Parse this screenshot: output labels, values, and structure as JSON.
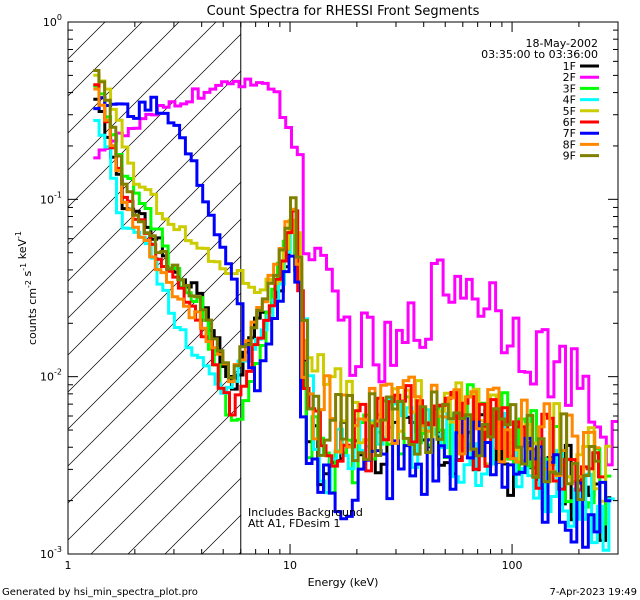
{
  "chart_data": {
    "type": "line",
    "title": "Count Spectra for RHESSI Front Segments",
    "xlabel": "Energy (keV)",
    "ylabel": "counts cm-2 s-1 keV-1",
    "x_scale": "log",
    "y_scale": "log",
    "xlim": [
      1,
      300
    ],
    "ylim": [
      0.001,
      1
    ],
    "x_tick_labels": [
      "1",
      "10",
      "100"
    ],
    "y_tick_labels": [
      {
        "base": "10",
        "exp": "0"
      },
      {
        "base": "10",
        "exp": "-1"
      },
      {
        "base": "10",
        "exp": "-2"
      },
      {
        "base": "10",
        "exp": "-3"
      }
    ],
    "grid": false,
    "legend_position": "top-right",
    "header_lines": [
      "18-May-2002",
      "03:35:00 to 03:36:00"
    ],
    "annotations": [
      "Includes Background",
      "Att A1, FDesim 1"
    ],
    "shaded_region_keV": [
      1,
      6
    ],
    "footer_left": "Generated by hsi_min_spectra_plot.pro",
    "footer_right": "7-Apr-2023 19:49",
    "series": [
      {
        "name": "1F",
        "color": "#000000",
        "anchors": [
          [
            1.3,
            0.37
          ],
          [
            1.5,
            0.25
          ],
          [
            1.8,
            0.095
          ],
          [
            2.2,
            0.08
          ],
          [
            3.0,
            0.04
          ],
          [
            4.0,
            0.03
          ],
          [
            5.5,
            0.008
          ],
          [
            7.0,
            0.02
          ],
          [
            9.0,
            0.03
          ],
          [
            10.5,
            0.08
          ],
          [
            12,
            0.004
          ],
          [
            14,
            0.003
          ],
          [
            20,
            0.005
          ],
          [
            30,
            0.004
          ],
          [
            50,
            0.004
          ],
          [
            80,
            0.004
          ],
          [
            120,
            0.003
          ],
          [
            180,
            0.0025
          ],
          [
            280,
            0.0015
          ]
        ]
      },
      {
        "name": "2F",
        "color": "#ff00ff",
        "anchors": [
          [
            1.3,
            0.18
          ],
          [
            1.5,
            0.2
          ],
          [
            2.0,
            0.25
          ],
          [
            2.5,
            0.3
          ],
          [
            3.0,
            0.35
          ],
          [
            4.0,
            0.4
          ],
          [
            5.0,
            0.42
          ],
          [
            6.5,
            0.48
          ],
          [
            7.5,
            0.47
          ],
          [
            8.5,
            0.4
          ],
          [
            10,
            0.25
          ],
          [
            11,
            0.15
          ],
          [
            12,
            0.07
          ],
          [
            13,
            0.04
          ],
          [
            15,
            0.025
          ],
          [
            18,
            0.018
          ],
          [
            22,
            0.014
          ],
          [
            30,
            0.012
          ],
          [
            40,
            0.025
          ],
          [
            55,
            0.038
          ],
          [
            70,
            0.033
          ],
          [
            100,
            0.02
          ],
          [
            150,
            0.012
          ],
          [
            200,
            0.008
          ],
          [
            260,
            0.005
          ],
          [
            300,
            0.004
          ]
        ]
      },
      {
        "name": "3F",
        "color": "#00ff00",
        "anchors": [
          [
            1.3,
            0.5
          ],
          [
            1.5,
            0.3
          ],
          [
            1.8,
            0.13
          ],
          [
            2.2,
            0.1
          ],
          [
            3.0,
            0.04
          ],
          [
            4.0,
            0.025
          ],
          [
            5.5,
            0.005
          ],
          [
            7.0,
            0.01
          ],
          [
            9.0,
            0.04
          ],
          [
            10.5,
            0.09
          ],
          [
            12,
            0.005
          ],
          [
            16,
            0.003
          ],
          [
            25,
            0.006
          ],
          [
            40,
            0.005
          ],
          [
            60,
            0.006
          ],
          [
            90,
            0.005
          ],
          [
            130,
            0.004
          ],
          [
            200,
            0.003
          ],
          [
            280,
            0.002
          ]
        ]
      },
      {
        "name": "4F",
        "color": "#00ffff",
        "anchors": [
          [
            1.3,
            0.3
          ],
          [
            1.5,
            0.2
          ],
          [
            1.7,
            0.08
          ],
          [
            2.3,
            0.06
          ],
          [
            3.0,
            0.02
          ],
          [
            4.0,
            0.012
          ],
          [
            5.0,
            0.008
          ],
          [
            7.0,
            0.015
          ],
          [
            9.0,
            0.03
          ],
          [
            10.5,
            0.07
          ],
          [
            13,
            0.003
          ],
          [
            20,
            0.004
          ],
          [
            30,
            0.005
          ],
          [
            50,
            0.004
          ],
          [
            80,
            0.004
          ],
          [
            130,
            0.003
          ],
          [
            220,
            0.002
          ],
          [
            290,
            0.0015
          ]
        ]
      },
      {
        "name": "5F",
        "color": "#cccc00",
        "anchors": [
          [
            1.3,
            0.5
          ],
          [
            1.6,
            0.35
          ],
          [
            2.0,
            0.13
          ],
          [
            2.6,
            0.09
          ],
          [
            3.5,
            0.06
          ],
          [
            4.5,
            0.045
          ],
          [
            5.5,
            0.04
          ],
          [
            7.0,
            0.032
          ],
          [
            9.0,
            0.035
          ],
          [
            10.5,
            0.1
          ],
          [
            12,
            0.01
          ],
          [
            15,
            0.007
          ],
          [
            20,
            0.006
          ],
          [
            30,
            0.006
          ],
          [
            50,
            0.006
          ],
          [
            80,
            0.005
          ],
          [
            130,
            0.005
          ],
          [
            200,
            0.004
          ],
          [
            280,
            0.003
          ]
        ]
      },
      {
        "name": "6F",
        "color": "#ff0000",
        "anchors": [
          [
            1.3,
            0.55
          ],
          [
            1.5,
            0.3
          ],
          [
            1.8,
            0.1
          ],
          [
            2.2,
            0.07
          ],
          [
            3.0,
            0.035
          ],
          [
            4.0,
            0.02
          ],
          [
            5.5,
            0.006
          ],
          [
            7.0,
            0.015
          ],
          [
            9.0,
            0.035
          ],
          [
            10.5,
            0.09
          ],
          [
            12,
            0.006
          ],
          [
            18,
            0.004
          ],
          [
            28,
            0.005
          ],
          [
            45,
            0.006
          ],
          [
            70,
            0.005
          ],
          [
            110,
            0.004
          ],
          [
            170,
            0.0035
          ],
          [
            260,
            0.002
          ]
        ]
      },
      {
        "name": "7F",
        "color": "#0000ff",
        "anchors": [
          [
            1.3,
            0.34
          ],
          [
            1.6,
            0.35
          ],
          [
            2.0,
            0.3
          ],
          [
            2.4,
            0.36
          ],
          [
            3.0,
            0.28
          ],
          [
            3.5,
            0.18
          ],
          [
            4.0,
            0.12
          ],
          [
            5.0,
            0.05
          ],
          [
            5.8,
            0.03
          ],
          [
            7.0,
            0.008
          ],
          [
            9.0,
            0.025
          ],
          [
            10.5,
            0.06
          ],
          [
            12,
            0.004
          ],
          [
            15,
            0.002
          ],
          [
            25,
            0.003
          ],
          [
            40,
            0.003
          ],
          [
            70,
            0.004
          ],
          [
            110,
            0.003
          ],
          [
            180,
            0.002
          ],
          [
            280,
            0.0015
          ]
        ]
      },
      {
        "name": "8F",
        "color": "#ff8800",
        "anchors": [
          [
            1.3,
            0.47
          ],
          [
            1.5,
            0.28
          ],
          [
            1.8,
            0.1
          ],
          [
            2.2,
            0.06
          ],
          [
            3.0,
            0.03
          ],
          [
            4.0,
            0.02
          ],
          [
            5.5,
            0.01
          ],
          [
            7.0,
            0.02
          ],
          [
            9.0,
            0.05
          ],
          [
            10.5,
            0.1
          ],
          [
            12,
            0.008
          ],
          [
            16,
            0.006
          ],
          [
            25,
            0.006
          ],
          [
            40,
            0.007
          ],
          [
            60,
            0.006
          ],
          [
            100,
            0.005
          ],
          [
            160,
            0.004
          ],
          [
            250,
            0.003
          ]
        ]
      },
      {
        "name": "9F",
        "color": "#808000",
        "anchors": [
          [
            1.3,
            0.57
          ],
          [
            1.5,
            0.35
          ],
          [
            1.8,
            0.12
          ],
          [
            2.2,
            0.07
          ],
          [
            3.0,
            0.04
          ],
          [
            4.0,
            0.025
          ],
          [
            5.5,
            0.01
          ],
          [
            7.0,
            0.02
          ],
          [
            9.0,
            0.045
          ],
          [
            10.5,
            0.11
          ],
          [
            12,
            0.007
          ],
          [
            16,
            0.005
          ],
          [
            25,
            0.005
          ],
          [
            40,
            0.006
          ],
          [
            60,
            0.005
          ],
          [
            100,
            0.005
          ],
          [
            160,
            0.004
          ],
          [
            250,
            0.0025
          ]
        ]
      }
    ]
  }
}
